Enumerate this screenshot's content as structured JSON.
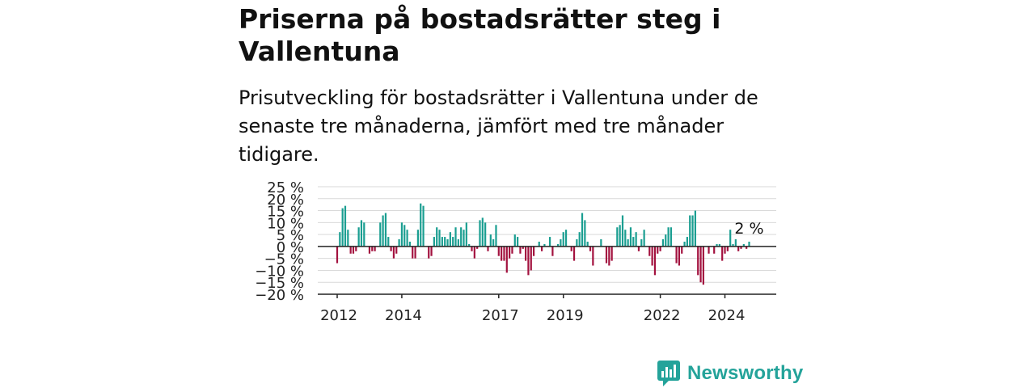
{
  "title": "Priserna på bostadsrätter steg i Vallentuna",
  "subtitle": "Prisutveckling för bostadsrätter i Vallentuna under de senaste tre månaderna, jämfört med tre månader tidigare.",
  "brand": {
    "name": "Newsworthy",
    "color": "#24a39a"
  },
  "colors": {
    "positive": "#1a9e91",
    "negative": "#a3123f",
    "grid": "#d9d9d9",
    "axis": "#222222"
  },
  "chart_data": {
    "type": "bar",
    "ylim": [
      -20,
      25
    ],
    "yticks": [
      {
        "v": 25,
        "label": "25 %"
      },
      {
        "v": 20,
        "label": "20 %"
      },
      {
        "v": 15,
        "label": "15 %"
      },
      {
        "v": 10,
        "label": "10 %"
      },
      {
        "v": 5,
        "label": "5 %"
      },
      {
        "v": 0,
        "label": "0 %"
      },
      {
        "v": -5,
        "label": "−5 %"
      },
      {
        "v": -10,
        "label": "−10 %"
      },
      {
        "v": -15,
        "label": "−15 %"
      },
      {
        "v": -20,
        "label": "−20 %"
      }
    ],
    "xticks": [
      {
        "year": 2012,
        "label": "2012"
      },
      {
        "year": 2014,
        "label": "2014"
      },
      {
        "year": 2017,
        "label": "2017"
      },
      {
        "year": 2019,
        "label": "2019"
      },
      {
        "year": 2022,
        "label": "2022"
      },
      {
        "year": 2024,
        "label": "2024"
      }
    ],
    "start": {
      "year": 2012,
      "month": 1
    },
    "values": [
      -7,
      6,
      16,
      17,
      7,
      -3,
      -3,
      -2,
      8,
      11,
      10,
      0,
      -3,
      -2,
      -2,
      0,
      10,
      13,
      14,
      4,
      -2,
      -5,
      -3,
      3,
      10,
      9,
      7,
      2,
      -5,
      -5,
      7,
      18,
      17,
      0,
      -5,
      -4,
      4,
      8,
      7,
      4,
      4,
      3,
      6,
      4,
      8,
      3,
      8,
      7,
      10,
      1,
      -2,
      -5,
      -1,
      11,
      12,
      10,
      -2,
      5,
      3,
      9,
      -4,
      -6,
      -6,
      -11,
      -5,
      -3,
      5,
      4,
      -3,
      -1,
      -6,
      -12,
      -10,
      -4,
      0,
      2,
      -2,
      1,
      0,
      4,
      -4,
      0,
      1,
      3,
      6,
      7,
      0,
      -2,
      -6,
      3,
      6,
      14,
      11,
      2,
      -2,
      -8,
      0,
      0,
      3,
      0,
      -7,
      -8,
      -6,
      0,
      8,
      9,
      13,
      7,
      3,
      8,
      4,
      6,
      -2,
      3,
      7,
      0,
      -4,
      -8,
      -12,
      -3,
      -2,
      3,
      5,
      8,
      8,
      0,
      -7,
      -8,
      -3,
      2,
      4,
      13,
      13,
      15,
      -12,
      -15,
      -16,
      0,
      -3,
      0,
      -3,
      1,
      1,
      -6,
      -3,
      -2,
      7,
      1,
      3,
      -2,
      -1,
      1,
      -1,
      2
    ],
    "last_label": "2 %"
  }
}
